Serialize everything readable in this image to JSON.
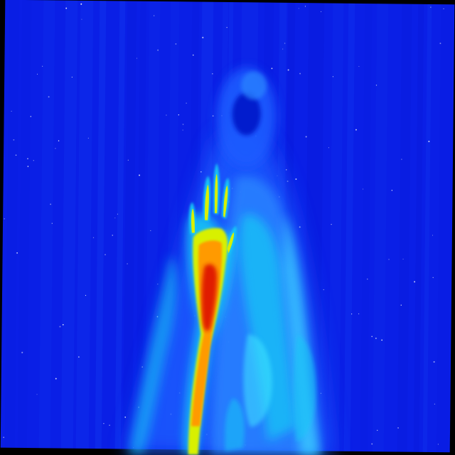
{
  "image": {
    "kind": "thermal-false-color-photo",
    "subject": "hooded-figure-raising-hand",
    "palette": {
      "frame": "#000000",
      "background": "#0a1fe6",
      "background_dark": "#0612c8",
      "cool": "#1e5cff",
      "cool_light": "#2a86ff",
      "mid": "#19c6f5",
      "mid_light": "#3fe6ff",
      "warm": "#d8f000",
      "hot": "#ff9a00",
      "hottest": "#e01a00",
      "star": "#ffffff"
    }
  }
}
